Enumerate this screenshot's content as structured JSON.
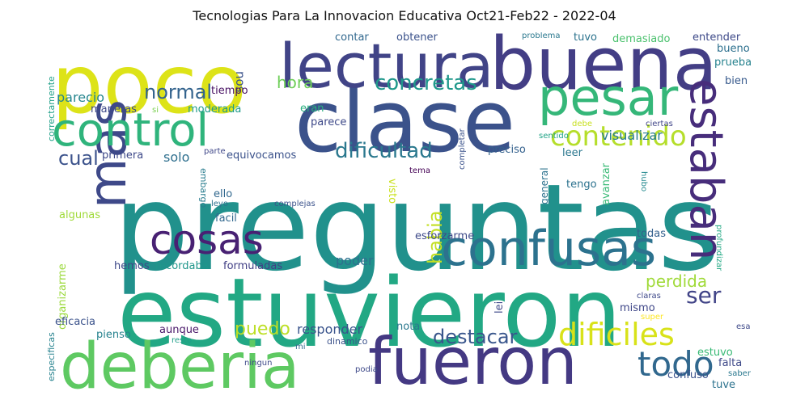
{
  "title": "Tecnologias Para La Innovacion Educativa Oct21-Feb22 - 2022-04",
  "words": [
    {
      "text": "preguntas",
      "color": "#21918c"
    },
    {
      "text": "estuvieron",
      "color": "#22a884"
    },
    {
      "text": "poco",
      "color": "#dde318"
    },
    {
      "text": "clase",
      "color": "#3b528b"
    },
    {
      "text": "lectura",
      "color": "#414487"
    },
    {
      "text": "buena",
      "color": "#433e85"
    },
    {
      "text": "deberia",
      "color": "#5ec962"
    },
    {
      "text": "fueron",
      "color": "#443983"
    },
    {
      "text": "mas",
      "color": "#3e4989"
    },
    {
      "text": "control",
      "color": "#2fb47c"
    },
    {
      "text": "pesar",
      "color": "#35b779"
    },
    {
      "text": "confusas",
      "color": "#2c728e"
    },
    {
      "text": "estaban",
      "color": "#472d7b"
    },
    {
      "text": "cosas",
      "color": "#482173"
    },
    {
      "text": "contenido",
      "color": "#b5de2b"
    },
    {
      "text": "dificiles",
      "color": "#d8e219"
    },
    {
      "text": "todo",
      "color": "#31688e"
    },
    {
      "text": "dificultad",
      "color": "#2a788e"
    },
    {
      "text": "concretas",
      "color": "#1f988b"
    },
    {
      "text": "normal",
      "color": "#33638d"
    },
    {
      "text": "destacar",
      "color": "#39568c"
    },
    {
      "text": "habia",
      "color": "#c2df23"
    },
    {
      "text": "ser",
      "color": "#414487"
    },
    {
      "text": "cual",
      "color": "#3b528b"
    },
    {
      "text": "hora",
      "color": "#6ece58"
    },
    {
      "text": "puedo",
      "color": "#bddf26"
    },
    {
      "text": "perdida",
      "color": "#a0da39"
    },
    {
      "text": "parecio",
      "color": "#25858e"
    },
    {
      "text": "solo",
      "color": "#2e6f8e"
    },
    {
      "text": "responder",
      "color": "#3a548c"
    },
    {
      "text": "visualizar",
      "color": "#287d8e"
    },
    {
      "text": "poder",
      "color": "#2d708e"
    },
    {
      "text": "nos",
      "color": "#3b528b"
    },
    {
      "text": "contar",
      "color": "#31688e"
    },
    {
      "text": "obtener",
      "color": "#3b528b"
    },
    {
      "text": "problema",
      "color": "#2a788e"
    },
    {
      "text": "tuvo",
      "color": "#2c738e"
    },
    {
      "text": "demasiado",
      "color": "#4ac16d"
    },
    {
      "text": "entender",
      "color": "#3e4a89"
    },
    {
      "text": "bueno",
      "color": "#2d708e"
    },
    {
      "text": "prueba",
      "color": "#26828e"
    },
    {
      "text": "bien",
      "color": "#375a8c"
    },
    {
      "text": "tiempo",
      "color": "#471063"
    },
    {
      "text": "maneras",
      "color": "#3e4989"
    },
    {
      "text": "moderada",
      "color": "#1e9b8a"
    },
    {
      "text": "si",
      "color": "#7ad151"
    },
    {
      "text": "eran",
      "color": "#29af7f"
    },
    {
      "text": "parece",
      "color": "#3e4989"
    },
    {
      "text": "debe",
      "color": "#c8e020"
    },
    {
      "text": "ciertas",
      "color": "#404588"
    },
    {
      "text": "sentido",
      "color": "#20a386"
    },
    {
      "text": "primera",
      "color": "#3e4989"
    },
    {
      "text": "parte",
      "color": "#3f4788"
    },
    {
      "text": "equivocamos",
      "color": "#3b528b"
    },
    {
      "text": "preciso",
      "color": "#34618d"
    },
    {
      "text": "leer",
      "color": "#2a768e"
    },
    {
      "text": "tema",
      "color": "#440154"
    },
    {
      "text": "completar",
      "color": "#3b528b"
    },
    {
      "text": "hubo",
      "color": "#23898e"
    },
    {
      "text": "tengo",
      "color": "#2c728e"
    },
    {
      "text": "visto",
      "color": "#cae11f"
    },
    {
      "text": "general",
      "color": "#2c728e"
    },
    {
      "text": "ello",
      "color": "#31688e"
    },
    {
      "text": "leyo",
      "color": "#2d708e"
    },
    {
      "text": "complejas",
      "color": "#3b528b"
    },
    {
      "text": "embargo",
      "color": "#287c8e"
    },
    {
      "text": "algunas",
      "color": "#a0da39"
    },
    {
      "text": "facil",
      "color": "#31688e"
    },
    {
      "text": "esforzarme",
      "color": "#3e4a89"
    },
    {
      "text": "avanzar",
      "color": "#3aba76"
    },
    {
      "text": "todas",
      "color": "#34618d"
    },
    {
      "text": "hemos",
      "color": "#3e4989"
    },
    {
      "text": "recordaba",
      "color": "#1f968b"
    },
    {
      "text": "formuladas",
      "color": "#424086"
    },
    {
      "text": "organizarme",
      "color": "#9bd93c"
    },
    {
      "text": "correctamente",
      "color": "#1fa088"
    },
    {
      "text": "especificas",
      "color": "#26828e"
    },
    {
      "text": "lei",
      "color": "#3e4989"
    },
    {
      "text": "mismo",
      "color": "#3f4788"
    },
    {
      "text": "claras",
      "color": "#3e4989"
    },
    {
      "text": "super",
      "color": "#fde725"
    },
    {
      "text": "profundizar",
      "color": "#22a884"
    },
    {
      "text": "eficacia",
      "color": "#3b528b"
    },
    {
      "text": "pienso",
      "color": "#26828e"
    },
    {
      "text": "aunque",
      "color": "#481769"
    },
    {
      "text": "resto",
      "color": "#1f9e89"
    },
    {
      "text": "mi",
      "color": "#31688e"
    },
    {
      "text": "dinamico",
      "color": "#3b528b"
    },
    {
      "text": "nota",
      "color": "#2a788e"
    },
    {
      "text": "esa",
      "color": "#3e4989"
    },
    {
      "text": "estuvo",
      "color": "#3aba76"
    },
    {
      "text": "falta",
      "color": "#3e4989"
    },
    {
      "text": "ningun",
      "color": "#3e4989"
    },
    {
      "text": "podia",
      "color": "#3e4989"
    },
    {
      "text": "confuso",
      "color": "#3b528b"
    },
    {
      "text": "saber",
      "color": "#2a788e"
    },
    {
      "text": "tuve",
      "color": "#2c728e"
    }
  ]
}
